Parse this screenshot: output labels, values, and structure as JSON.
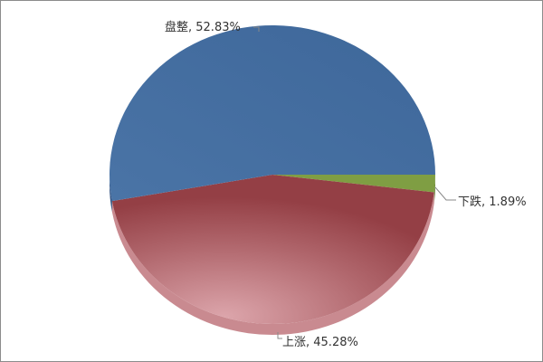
{
  "chart_data": {
    "type": "pie",
    "title": "",
    "slices": [
      {
        "label": "下跌",
        "value": 1.89,
        "display": "下跌, 1.89%",
        "color": "#7f9e43"
      },
      {
        "label": "上涨",
        "value": 45.28,
        "display": "上涨, 45.28%",
        "color": "#9e4a4f"
      },
      {
        "label": "盘整",
        "value": 52.83,
        "display": "盘整, 52.83%",
        "color": "#41699b"
      }
    ],
    "style": "3d-tilted",
    "legend": "none"
  }
}
